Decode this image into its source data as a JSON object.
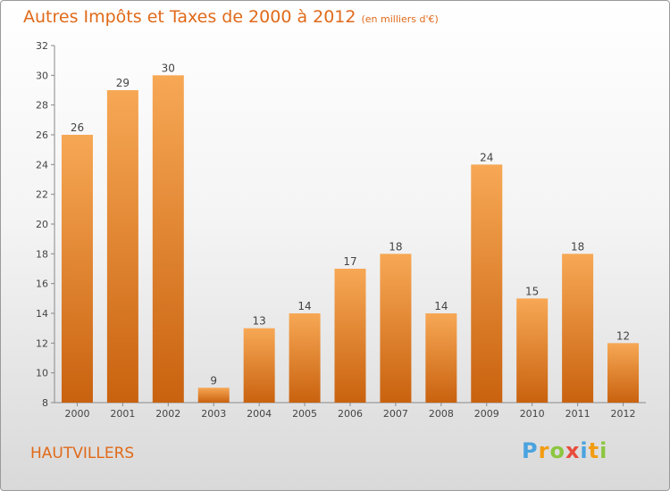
{
  "title": "Autres Impôts et Taxes de 2000 à 2012",
  "subtitle": "(en milliers d'€)",
  "place": "HAUTVILLERS",
  "logo": {
    "letters": [
      "P",
      "r",
      "o",
      "x",
      "i",
      "t",
      "i"
    ],
    "colors": [
      "#4aa3df",
      "#f39c12",
      "#8cc63f",
      "#e74c3c",
      "#4aa3df",
      "#f39c12",
      "#8cc63f"
    ]
  },
  "colors": {
    "bar_light": "#f7a855",
    "bar_dark": "#c9620f",
    "text_accent": "#e06a1a"
  },
  "chart_data": {
    "type": "bar",
    "categories": [
      "2000",
      "2001",
      "2002",
      "2003",
      "2004",
      "2005",
      "2006",
      "2007",
      "2008",
      "2009",
      "2010",
      "2011",
      "2012"
    ],
    "values": [
      26,
      29,
      30,
      9,
      13,
      14,
      17,
      18,
      14,
      24,
      15,
      18,
      12
    ],
    "ylim": [
      8,
      32
    ],
    "yticks": [
      8,
      10,
      12,
      14,
      16,
      18,
      20,
      22,
      24,
      26,
      28,
      30,
      32
    ],
    "grid": false,
    "data_labels": true
  }
}
